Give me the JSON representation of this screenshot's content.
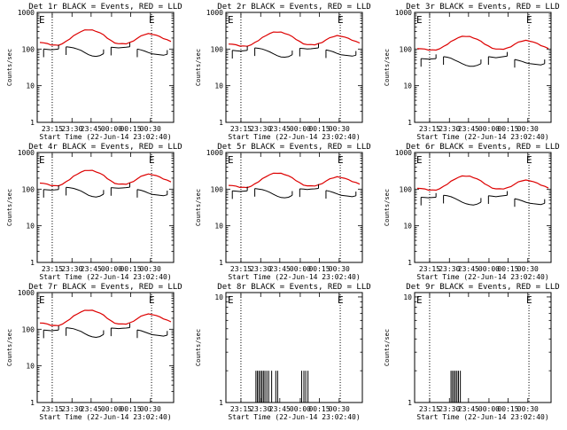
{
  "figure": {
    "x_label": "Start Time (22-Jun-14 23:02:40)",
    "y_label": "Counts/sec"
  },
  "chart_data": [
    {
      "type": "line",
      "title": "Det 1r BLACK = Events, RED = LLD",
      "x_ticks": [
        "23:15",
        "23:30",
        "23:45",
        "00:00",
        "00:15",
        "00:30"
      ],
      "y_ticks": [
        "1",
        "10",
        "100",
        "1000"
      ],
      "y_scale": "log",
      "ylim": [
        1,
        1000
      ],
      "markers": [
        "E",
        "E"
      ],
      "series": [
        {
          "color": "#dd0000",
          "kind": "smooth",
          "values": [
            155,
            148,
            138,
            130,
            128,
            130,
            140,
            160,
            190,
            230,
            270,
            300,
            325,
            335,
            330,
            310,
            280,
            240,
            200,
            170,
            150,
            140,
            138,
            140,
            150,
            170,
            195,
            225,
            250,
            262,
            258,
            240,
            215,
            195,
            178,
            165
          ]
        },
        {
          "color": "#000000",
          "kind": "segments",
          "segments": [
            {
              "start": 1,
              "values": [
                100,
                98,
                96,
                98,
                100
              ]
            },
            {
              "start": 7,
              "values": [
                115,
                112,
                108,
                100,
                92,
                80,
                70,
                65,
                63,
                66,
                75
              ]
            },
            {
              "start": 19,
              "values": [
                112,
                110,
                108,
                110,
                112,
                115
              ]
            },
            {
              "start": 26,
              "values": [
                100,
                95,
                88,
                80,
                74,
                72,
                70,
                68,
                72
              ]
            }
          ]
        }
      ]
    },
    {
      "type": "line",
      "title": "Det 2r BLACK = Events, RED = LLD",
      "x_ticks": [
        "23:15",
        "23:30",
        "23:45",
        "00:00",
        "00:15",
        "00:30"
      ],
      "y_ticks": [
        "1",
        "10",
        "100",
        "1000"
      ],
      "y_scale": "log",
      "ylim": [
        1,
        1000
      ],
      "markers": [
        "E",
        "E"
      ],
      "series": [
        {
          "color": "#dd0000",
          "kind": "smooth",
          "values": [
            140,
            135,
            128,
            122,
            120,
            122,
            130,
            148,
            172,
            205,
            240,
            265,
            285,
            292,
            288,
            272,
            248,
            215,
            185,
            160,
            142,
            132,
            130,
            132,
            140,
            155,
            178,
            200,
            220,
            232,
            228,
            212,
            192,
            175,
            160,
            150
          ]
        },
        {
          "color": "#000000",
          "kind": "segments",
          "segments": [
            {
              "start": 1,
              "values": [
                92,
                90,
                88,
                90,
                92
              ]
            },
            {
              "start": 7,
              "values": [
                108,
                105,
                100,
                92,
                84,
                74,
                66,
                61,
                60,
                62,
                70
              ]
            },
            {
              "start": 19,
              "values": [
                105,
                103,
                100,
                102,
                105,
                108
              ]
            },
            {
              "start": 26,
              "values": [
                95,
                90,
                84,
                76,
                70,
                68,
                66,
                64,
                68
              ]
            }
          ]
        }
      ]
    },
    {
      "type": "line",
      "title": "Det 3r BLACK = Events, RED = LLD",
      "x_ticks": [
        "23:15",
        "23:30",
        "23:45",
        "00:00",
        "00:15",
        "00:30"
      ],
      "y_ticks": [
        "1",
        "10",
        "100",
        "1000"
      ],
      "y_scale": "log",
      "ylim": [
        1,
        1000
      ],
      "markers": [
        "E",
        "E"
      ],
      "series": [
        {
          "color": "#dd0000",
          "kind": "smooth",
          "values": [
            105,
            102,
            98,
            95,
            94,
            96,
            102,
            115,
            135,
            160,
            185,
            205,
            218,
            222,
            218,
            205,
            185,
            160,
            138,
            120,
            108,
            100,
            98,
            100,
            106,
            118,
            135,
            152,
            166,
            172,
            168,
            156,
            140,
            126,
            114,
            106
          ]
        },
        {
          "color": "#000000",
          "kind": "segments",
          "segments": [
            {
              "start": 1,
              "values": [
                55,
                54,
                53,
                54,
                55
              ]
            },
            {
              "start": 7,
              "values": [
                62,
                60,
                56,
                50,
                45,
                40,
                36,
                34,
                34,
                36,
                40
              ]
            },
            {
              "start": 19,
              "values": [
                62,
                60,
                58,
                60,
                62,
                64
              ]
            },
            {
              "start": 26,
              "values": [
                52,
                49,
                46,
                42,
                40,
                39,
                38,
                37,
                40
              ]
            }
          ]
        }
      ]
    },
    {
      "type": "line",
      "title": "Det 4r BLACK = Events, RED = LLD",
      "x_ticks": [
        "23:15",
        "23:30",
        "23:45",
        "00:00",
        "00:15",
        "00:30"
      ],
      "y_ticks": [
        "1",
        "10",
        "100",
        "1000"
      ],
      "y_scale": "log",
      "ylim": [
        1,
        1000
      ],
      "markers": [
        "E",
        "E"
      ],
      "series": [
        {
          "color": "#dd0000",
          "kind": "smooth",
          "values": [
            150,
            144,
            134,
            126,
            124,
            126,
            136,
            156,
            185,
            224,
            262,
            292,
            316,
            326,
            322,
            302,
            272,
            234,
            196,
            166,
            147,
            137,
            135,
            137,
            147,
            166,
            190,
            220,
            244,
            256,
            252,
            235,
            210,
            190,
            174,
            161
          ]
        },
        {
          "color": "#000000",
          "kind": "segments",
          "segments": [
            {
              "start": 1,
              "values": [
                98,
                96,
                94,
                96,
                98
              ]
            },
            {
              "start": 7,
              "values": [
                112,
                109,
                105,
                97,
                89,
                78,
                68,
                63,
                61,
                64,
                73
              ]
            },
            {
              "start": 19,
              "values": [
                110,
                108,
                106,
                108,
                110,
                113
              ]
            },
            {
              "start": 26,
              "values": [
                98,
                93,
                86,
                78,
                72,
                70,
                68,
                66,
                70
              ]
            }
          ]
        }
      ]
    },
    {
      "type": "line",
      "title": "Det 5r BLACK = Events, RED = LLD",
      "x_ticks": [
        "23:15",
        "23:30",
        "23:45",
        "00:00",
        "00:15",
        "00:30"
      ],
      "y_ticks": [
        "1",
        "10",
        "100",
        "1000"
      ],
      "y_scale": "log",
      "ylim": [
        1,
        1000
      ],
      "markers": [
        "E",
        "E"
      ],
      "series": [
        {
          "color": "#dd0000",
          "kind": "smooth",
          "values": [
            130,
            125,
            118,
            113,
            111,
            113,
            120,
            137,
            160,
            191,
            224,
            248,
            266,
            273,
            269,
            254,
            231,
            200,
            172,
            149,
            132,
            123,
            121,
            123,
            130,
            145,
            166,
            187,
            205,
            216,
            212,
            198,
            179,
            163,
            150,
            140
          ]
        },
        {
          "color": "#000000",
          "kind": "segments",
          "segments": [
            {
              "start": 1,
              "values": [
                90,
                88,
                86,
                88,
                90
              ]
            },
            {
              "start": 7,
              "values": [
                104,
                101,
                97,
                90,
                82,
                72,
                64,
                59,
                58,
                60,
                68
              ]
            },
            {
              "start": 19,
              "values": [
                102,
                100,
                98,
                100,
                102,
                105
              ]
            },
            {
              "start": 26,
              "values": [
                92,
                87,
                81,
                74,
                68,
                66,
                64,
                62,
                66
              ]
            }
          ]
        }
      ]
    },
    {
      "type": "line",
      "title": "Det 6r BLACK = Events, RED = LLD",
      "x_ticks": [
        "23:15",
        "23:30",
        "23:45",
        "00:00",
        "00:15",
        "00:30"
      ],
      "y_ticks": [
        "1",
        "10",
        "100",
        "1000"
      ],
      "y_scale": "log",
      "ylim": [
        1,
        1000
      ],
      "markers": [
        "E",
        "E"
      ],
      "series": [
        {
          "color": "#dd0000",
          "kind": "smooth",
          "values": [
            108,
            104,
            99,
            95,
            94,
            96,
            103,
            117,
            137,
            163,
            190,
            210,
            224,
            228,
            224,
            211,
            190,
            164,
            141,
            122,
            109,
            102,
            100,
            102,
            108,
            120,
            137,
            155,
            170,
            176,
            172,
            160,
            144,
            130,
            118,
            110
          ]
        },
        {
          "color": "#000000",
          "kind": "segments",
          "segments": [
            {
              "start": 1,
              "values": [
                60,
                59,
                58,
                59,
                60
              ]
            },
            {
              "start": 7,
              "values": [
                68,
                66,
                62,
                56,
                50,
                44,
                40,
                38,
                37,
                39,
                44
              ]
            },
            {
              "start": 19,
              "values": [
                66,
                64,
                62,
                64,
                66,
                68
              ]
            },
            {
              "start": 26,
              "values": [
                55,
                52,
                48,
                44,
                41,
                40,
                39,
                38,
                41
              ]
            }
          ]
        }
      ]
    },
    {
      "type": "line",
      "title": "Det 7r BLACK = Events, RED = LLD",
      "x_ticks": [
        "23:15",
        "23:30",
        "23:45",
        "00:00",
        "00:15",
        "00:30"
      ],
      "y_ticks": [
        "1",
        "10",
        "100",
        "1000"
      ],
      "y_scale": "log",
      "ylim": [
        1,
        1000
      ],
      "markers": [
        "E",
        "E"
      ],
      "series": [
        {
          "color": "#dd0000",
          "kind": "smooth",
          "values": [
            152,
            146,
            136,
            128,
            126,
            128,
            138,
            158,
            188,
            228,
            267,
            297,
            321,
            331,
            327,
            307,
            277,
            238,
            199,
            169,
            149,
            139,
            137,
            139,
            149,
            169,
            193,
            223,
            248,
            260,
            256,
            238,
            213,
            193,
            176,
            163
          ]
        },
        {
          "color": "#000000",
          "kind": "segments",
          "segments": [
            {
              "start": 1,
              "values": [
                95,
                93,
                91,
                93,
                95
              ]
            },
            {
              "start": 7,
              "values": [
                110,
                107,
                103,
                95,
                87,
                76,
                67,
                62,
                60,
                63,
                72
              ]
            },
            {
              "start": 19,
              "values": [
                108,
                106,
                104,
                106,
                108,
                111
              ]
            },
            {
              "start": 26,
              "values": [
                96,
                91,
                84,
                77,
                71,
                69,
                67,
                65,
                69
              ]
            }
          ]
        }
      ]
    },
    {
      "type": "line",
      "title": "Det 8r BLACK = Events, RED = LLD",
      "x_ticks": [
        "23:15",
        "23:30",
        "23:45",
        "00:00",
        "00:15",
        "00:30"
      ],
      "y_ticks": [
        "1",
        "10"
      ],
      "y_scale": "log",
      "ylim": [
        1,
        11
      ],
      "markers": [
        "E",
        "E"
      ],
      "series": [
        {
          "color": "#000000",
          "kind": "spikes",
          "x": [
            7.3,
            7.7,
            8.1,
            8.5,
            8.9,
            9.3,
            9.7,
            10.2,
            10.7,
            11.5,
            12.6,
            13.1,
            19.5,
            20.1,
            20.6,
            21.2
          ]
        }
      ]
    },
    {
      "type": "line",
      "title": "Det 9r BLACK = Events, RED = LLD",
      "x_ticks": [
        "23:15",
        "23:30",
        "23:45",
        "00:00",
        "00:15",
        "00:30"
      ],
      "y_ticks": [
        "1",
        "10"
      ],
      "y_scale": "log",
      "ylim": [
        1,
        11
      ],
      "markers": [
        "E",
        "E"
      ],
      "series": [
        {
          "color": "#000000",
          "kind": "spikes",
          "x": [
            9.0,
            9.4,
            9.8,
            10.2,
            10.6,
            11.0,
            11.5
          ]
        }
      ]
    }
  ]
}
